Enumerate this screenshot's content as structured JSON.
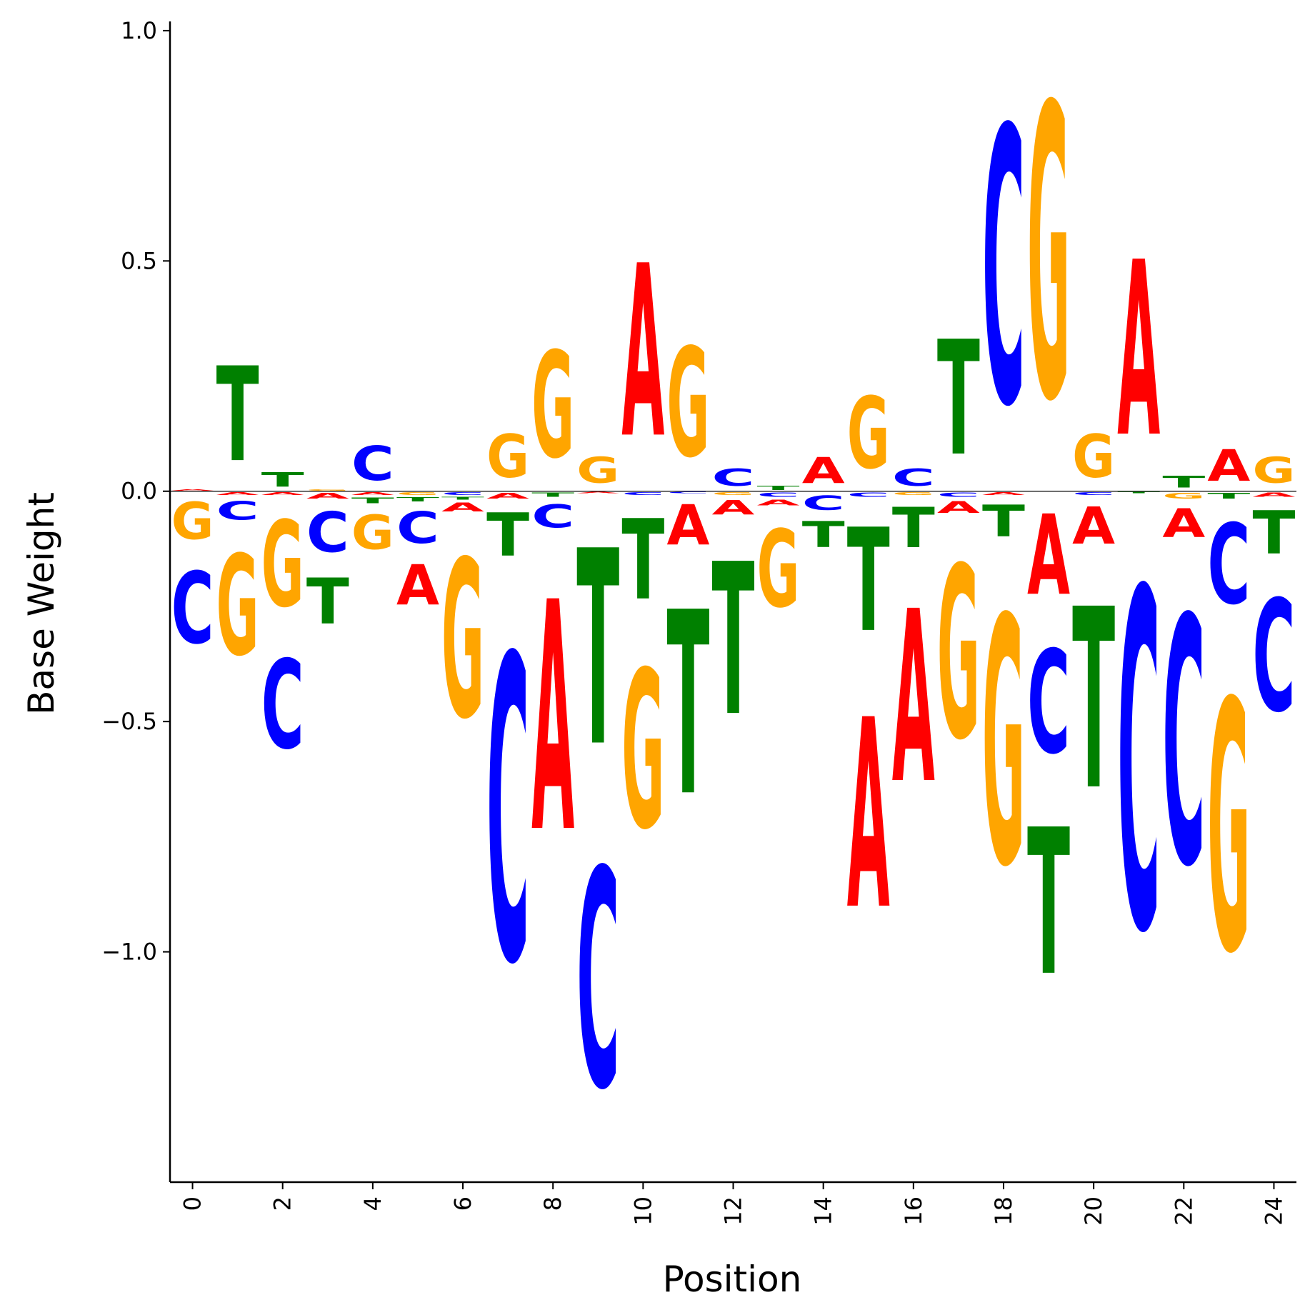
{
  "chart_data": {
    "type": "sequence-logo",
    "xlabel": "Position",
    "ylabel": "Base Weight",
    "ylim": [
      -1.5,
      1.02
    ],
    "xlim": [
      -0.5,
      24.5
    ],
    "x_ticks": [
      0,
      2,
      4,
      6,
      8,
      10,
      12,
      14,
      16,
      18,
      20,
      22,
      24
    ],
    "y_ticks": [
      -1.0,
      -0.5,
      0.0,
      0.5,
      1.0
    ],
    "y_tick_labels": [
      "−1.0",
      "−0.5",
      "0.0",
      "0.5",
      "1.0"
    ],
    "base_colors": {
      "A": "#ff0000",
      "C": "#0000ff",
      "G": "#ffa500",
      "T": "#008000"
    },
    "positions": [
      {
        "x": 0,
        "A": 0.005,
        "C": -0.25,
        "G": -0.13,
        "T": 0.0
      },
      {
        "x": 1,
        "A": -0.01,
        "C": -0.065,
        "G": -0.35,
        "T": 0.33
      },
      {
        "x": 2,
        "A": -0.01,
        "C": -0.31,
        "G": -0.3,
        "T": 0.05
      },
      {
        "x": 3,
        "A": -0.02,
        "C": -0.14,
        "G": 0.005,
        "T": -0.16
      },
      {
        "x": 4,
        "A": -0.01,
        "C": 0.12,
        "G": -0.12,
        "T": -0.02
      },
      {
        "x": 5,
        "A": -0.14,
        "C": -0.11,
        "G": -0.01,
        "T": -0.015
      },
      {
        "x": 6,
        "A": -0.03,
        "C": -0.01,
        "G": -0.55,
        "T": -0.01
      },
      {
        "x": 7,
        "A": -0.02,
        "C": -1.06,
        "G": 0.15,
        "T": -0.15
      },
      {
        "x": 8,
        "A": -0.8,
        "C": -0.08,
        "G": 0.37,
        "T": -0.015
      },
      {
        "x": 9,
        "A": -0.005,
        "C": -0.76,
        "G": 0.09,
        "T": -0.68
      },
      {
        "x": 10,
        "A": 0.6,
        "C": -0.01,
        "G": -0.55,
        "T": -0.28
      },
      {
        "x": 11,
        "A": -0.14,
        "C": -0.005,
        "G": 0.38,
        "T": -0.64
      },
      {
        "x": 12,
        "A": -0.05,
        "C": 0.06,
        "G": -0.01,
        "T": -0.53
      },
      {
        "x": 13,
        "A": -0.02,
        "C": -0.015,
        "G": -0.27,
        "T": 0.015
      },
      {
        "x": 14,
        "A": 0.09,
        "C": -0.05,
        "G": 0.0,
        "T": -0.09
      },
      {
        "x": 15,
        "A": -0.66,
        "C": -0.015,
        "G": 0.25,
        "T": -0.36
      },
      {
        "x": 16,
        "A": -0.6,
        "C": 0.06,
        "G": -0.01,
        "T": -0.14
      },
      {
        "x": 17,
        "A": -0.04,
        "C": -0.015,
        "G": -0.6,
        "T": 0.4
      },
      {
        "x": 18,
        "A": -0.01,
        "C": 0.96,
        "G": -0.86,
        "T": -0.11
      },
      {
        "x": 19,
        "A": -0.28,
        "C": -0.36,
        "G": 1.02,
        "T": -0.51
      },
      {
        "x": 20,
        "A": -0.13,
        "C": -0.01,
        "G": 0.15,
        "T": -0.63
      },
      {
        "x": 21,
        "A": 0.61,
        "C": -1.18,
        "G": 0.0,
        "T": -0.005
      },
      {
        "x": 22,
        "A": -0.1,
        "C": -0.86,
        "G": -0.02,
        "T": 0.04
      },
      {
        "x": 23,
        "A": 0.11,
        "C": -0.28,
        "G": -0.87,
        "T": -0.02
      },
      {
        "x": 24,
        "A": -0.015,
        "C": -0.39,
        "G": 0.09,
        "T": -0.15
      }
    ]
  }
}
